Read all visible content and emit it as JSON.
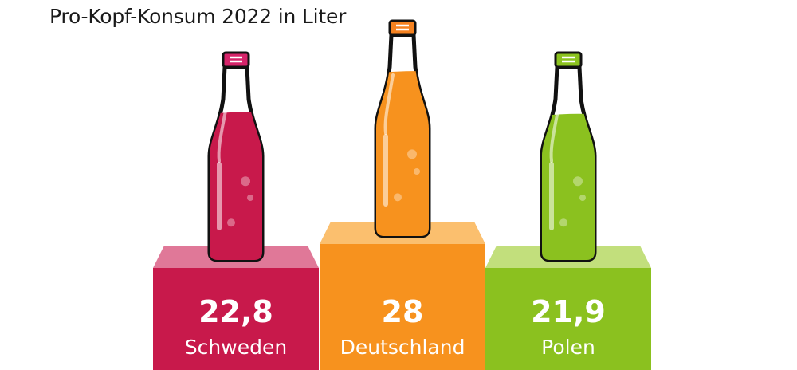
{
  "chart_data": {
    "type": "bar",
    "title": "Pro-Kopf-Konsum 2022 in Liter",
    "categories": [
      "Schweden",
      "Deutschland",
      "Polen"
    ],
    "values": [
      22.8,
      28,
      21.9
    ],
    "value_labels": [
      "22,8",
      "28",
      "21,9"
    ],
    "colors": [
      "#c8194b",
      "#f7921e",
      "#8bc11f"
    ],
    "top_colors": [
      "#e07898",
      "#fbbf6e",
      "#c2df7c"
    ],
    "cap_colors": [
      "#d6246a",
      "#f58220",
      "#8cc31f"
    ]
  }
}
